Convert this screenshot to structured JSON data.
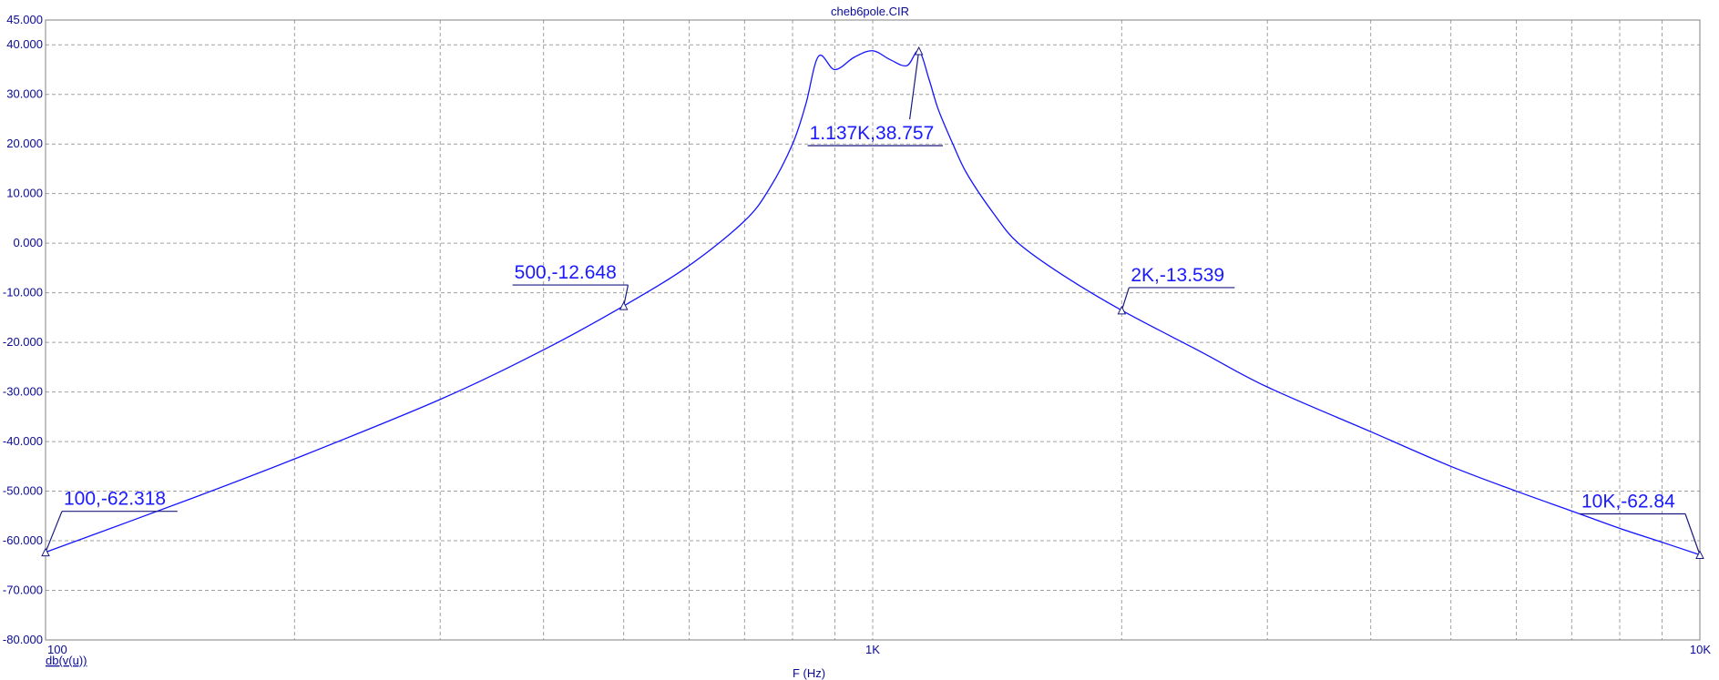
{
  "chart_data": {
    "type": "line",
    "title": "cheb6pole.CIR",
    "xlabel": "F (Hz)",
    "ylabel": "",
    "x_scale": "log",
    "xlim": [
      100,
      10000
    ],
    "ylim": [
      -80,
      45
    ],
    "grid": true,
    "x_ticks": [
      {
        "value": 100,
        "label": "100"
      },
      {
        "value": 1000,
        "label": "1K"
      },
      {
        "value": 10000,
        "label": "10K"
      }
    ],
    "y_ticks": [
      {
        "value": 45,
        "label": "45.000"
      },
      {
        "value": 40,
        "label": "40.000"
      },
      {
        "value": 30,
        "label": "30.000"
      },
      {
        "value": 20,
        "label": "20.000"
      },
      {
        "value": 10,
        "label": "10.000"
      },
      {
        "value": 0,
        "label": "0.000"
      },
      {
        "value": -10,
        "label": "-10.000"
      },
      {
        "value": -20,
        "label": "-20.000"
      },
      {
        "value": -30,
        "label": "-30.000"
      },
      {
        "value": -40,
        "label": "-40.000"
      },
      {
        "value": -50,
        "label": "-50.000"
      },
      {
        "value": -60,
        "label": "-60.000"
      },
      {
        "value": -70,
        "label": "-70.000"
      },
      {
        "value": -80,
        "label": "-80.000"
      }
    ],
    "series": [
      {
        "name": "db(v(u))",
        "color": "#1414ff",
        "x": [
          100,
          150,
          200,
          300,
          400,
          500,
          600,
          700,
          750,
          800,
          830,
          860,
          900,
          950,
          1000,
          1050,
          1100,
          1137,
          1170,
          1200,
          1250,
          1300,
          1400,
          1500,
          1700,
          2000,
          2500,
          3000,
          4000,
          5000,
          6000,
          7000,
          8000,
          9000,
          10000
        ],
        "y": [
          -62.318,
          -51.5,
          -43.5,
          -31.5,
          -21.5,
          -12.648,
          -4.5,
          4.5,
          11,
          20,
          28,
          37.7,
          35,
          37.5,
          38.8,
          37,
          35.8,
          38.757,
          33,
          27,
          20,
          14,
          6,
          0,
          -6.5,
          -13.539,
          -22,
          -29,
          -38,
          -45,
          -50,
          -54,
          -57.5,
          -60.3,
          -62.84
        ]
      }
    ],
    "annotations": [
      {
        "text": "100,-62.318",
        "x": 100,
        "y": -62.318
      },
      {
        "text": "500,-12.648",
        "x": 500,
        "y": -12.648
      },
      {
        "text": "1.137K,38.757",
        "x": 1137,
        "y": 38.757
      },
      {
        "text": "2K,-13.539",
        "x": 2000,
        "y": -13.539
      },
      {
        "text": "10K,-62.84",
        "x": 10000,
        "y": -62.84
      }
    ]
  }
}
